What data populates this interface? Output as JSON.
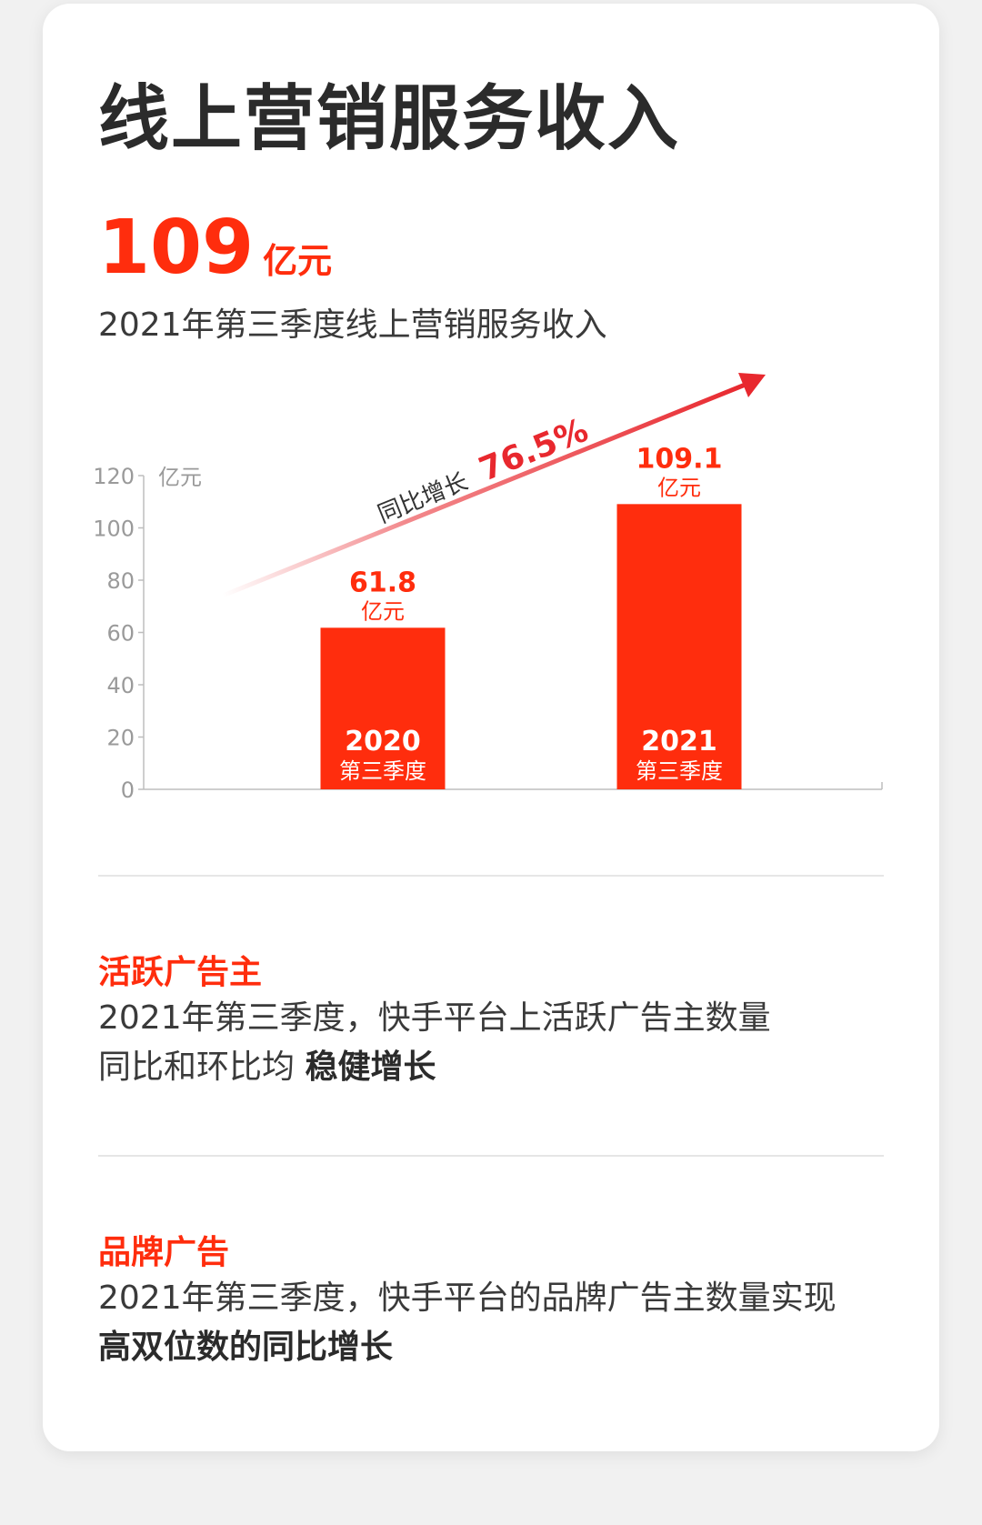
{
  "header": {
    "title": "线上营销服务收入",
    "hero_number": "109",
    "hero_unit": "亿元",
    "hero_caption": "2021年第三季度线上营销服务收入"
  },
  "chart_data": {
    "type": "bar",
    "unit_label": "亿元",
    "ylim": [
      0,
      120
    ],
    "yticks": [
      "0",
      "20",
      "40",
      "60",
      "80",
      "100",
      "120"
    ],
    "categories": [
      {
        "year": "2020",
        "quarter": "第三季度"
      },
      {
        "year": "2021",
        "quarter": "第三季度"
      }
    ],
    "values": [
      61.8,
      109.1
    ],
    "value_labels": [
      {
        "value": "61.8",
        "unit": "亿元"
      },
      {
        "value": "109.1",
        "unit": "亿元"
      }
    ],
    "growth": {
      "prefix": "同比增长",
      "value": "76.5%"
    },
    "colors": {
      "bar": "#ff2d0d",
      "arrow": "#e8282e",
      "axis": "#bdbdbd",
      "tick": "#9a9a9a"
    }
  },
  "sections": [
    {
      "heading": "活跃广告主",
      "body_lines": [
        "2021年第三季度，快手平台上活跃广告主数量",
        "同比和环比均 "
      ],
      "body_strong": "稳健增长"
    },
    {
      "heading": "品牌广告",
      "body_lines": [
        "2021年第三季度，快手平台的品牌广告主数量实现",
        ""
      ],
      "body_strong": "高双位数的同比增长"
    }
  ]
}
